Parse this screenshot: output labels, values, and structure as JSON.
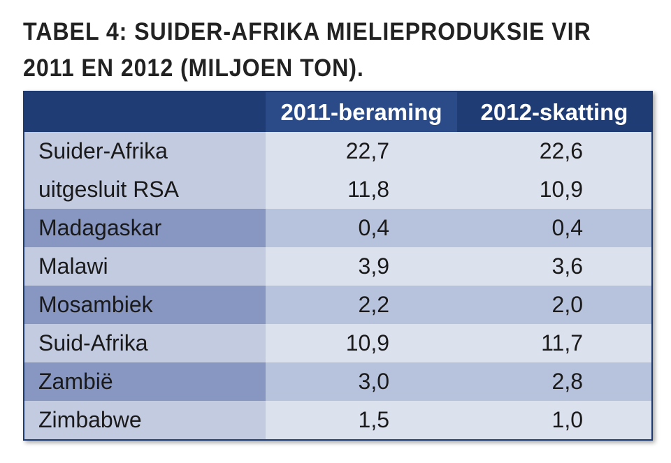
{
  "title": [
    "TABEL 4: SUIDER-AFRIKA MIELIEPRODUKSIE VIR",
    "2011 EN 2012 (MILJOEN TON)."
  ],
  "table": {
    "header": [
      "2011-beraming",
      "2012-skatting"
    ],
    "rows": [
      [
        "Suider-Afrika",
        "22,7",
        "22,6"
      ],
      [
        "uitgesluit RSA",
        "11,8",
        "10,9"
      ],
      [
        "Madagaskar",
        "0,4",
        "0,4"
      ],
      [
        "Malawi",
        "3,9",
        "3,6"
      ],
      [
        "Mosambiek",
        "2,2",
        "2,0"
      ],
      [
        "Suid-Afrika",
        "10,9",
        "11,7"
      ],
      [
        "Zambië",
        "3,0",
        "2,8"
      ],
      [
        "Zimbabwe",
        "1,5",
        "1,0"
      ]
    ]
  }
}
